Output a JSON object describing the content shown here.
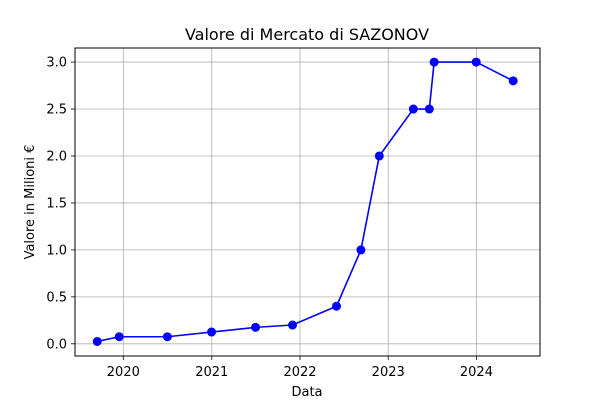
{
  "chart_data": {
    "type": "line",
    "title": "Valore di Mercato di SAZONOV",
    "xlabel": "Data",
    "ylabel": "Valore in Milioni €",
    "x_type": "date",
    "xlim": [
      "2019-06-15",
      "2024-09-20"
    ],
    "ylim": [
      -0.13,
      3.15
    ],
    "x_ticks": [
      {
        "date": "2020-01-01",
        "label": "2020"
      },
      {
        "date": "2021-01-01",
        "label": "2021"
      },
      {
        "date": "2022-01-01",
        "label": "2022"
      },
      {
        "date": "2023-01-01",
        "label": "2023"
      },
      {
        "date": "2024-01-01",
        "label": "2024"
      }
    ],
    "y_ticks": [
      {
        "value": 0.0,
        "label": "0.0"
      },
      {
        "value": 0.5,
        "label": "0.5"
      },
      {
        "value": 1.0,
        "label": "1.0"
      },
      {
        "value": 1.5,
        "label": "1.5"
      },
      {
        "value": 2.0,
        "label": "2.0"
      },
      {
        "value": 2.5,
        "label": "2.5"
      },
      {
        "value": 3.0,
        "label": "3.0"
      }
    ],
    "grid": true,
    "series": [
      {
        "color": "#0000ff",
        "marker": "circle",
        "points": [
          {
            "x": "2019-09-15",
            "y": 0.025
          },
          {
            "x": "2019-12-15",
            "y": 0.075
          },
          {
            "x": "2020-07-01",
            "y": 0.075
          },
          {
            "x": "2020-12-31",
            "y": 0.125
          },
          {
            "x": "2021-07-01",
            "y": 0.175
          },
          {
            "x": "2021-12-01",
            "y": 0.2
          },
          {
            "x": "2022-06-01",
            "y": 0.4
          },
          {
            "x": "2022-09-10",
            "y": 1.0
          },
          {
            "x": "2022-11-25",
            "y": 2.0
          },
          {
            "x": "2023-04-15",
            "y": 2.5
          },
          {
            "x": "2023-06-20",
            "y": 2.5
          },
          {
            "x": "2023-07-10",
            "y": 3.0
          },
          {
            "x": "2023-12-31",
            "y": 3.0
          },
          {
            "x": "2024-06-01",
            "y": 2.8
          }
        ]
      }
    ]
  }
}
